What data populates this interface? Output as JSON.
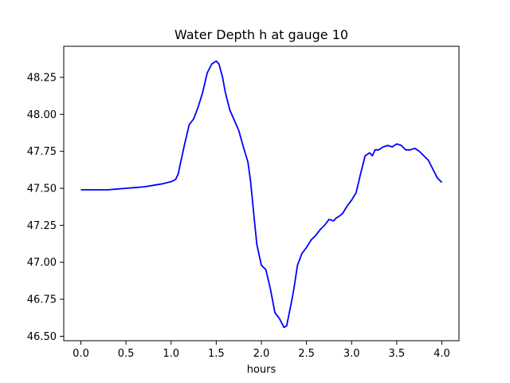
{
  "chart_data": {
    "type": "line",
    "title": "Water Depth h at gauge 10",
    "xlabel": "hours",
    "ylabel": "",
    "xlim": [
      -0.19,
      4.19
    ],
    "ylim": [
      46.47,
      48.46
    ],
    "xticks": [
      {
        "value": 0.0,
        "label": "0.0"
      },
      {
        "value": 0.5,
        "label": "0.5"
      },
      {
        "value": 1.0,
        "label": "1.0"
      },
      {
        "value": 1.5,
        "label": "1.5"
      },
      {
        "value": 2.0,
        "label": "2.0"
      },
      {
        "value": 2.5,
        "label": "2.5"
      },
      {
        "value": 3.0,
        "label": "3.0"
      },
      {
        "value": 3.5,
        "label": "3.5"
      },
      {
        "value": 4.0,
        "label": "4.0"
      }
    ],
    "yticks": [
      {
        "value": 46.5,
        "label": "46.50"
      },
      {
        "value": 46.75,
        "label": "46.75"
      },
      {
        "value": 47.0,
        "label": "47.00"
      },
      {
        "value": 47.25,
        "label": "47.25"
      },
      {
        "value": 47.5,
        "label": "47.50"
      },
      {
        "value": 47.75,
        "label": "47.75"
      },
      {
        "value": 48.0,
        "label": "48.00"
      },
      {
        "value": 48.25,
        "label": "48.25"
      }
    ],
    "grid": false,
    "series": [
      {
        "color": "#0000ff",
        "x": [
          0.0,
          0.1,
          0.2,
          0.3,
          0.4,
          0.5,
          0.6,
          0.7,
          0.75,
          0.8,
          0.9,
          1.0,
          1.05,
          1.08,
          1.1,
          1.15,
          1.2,
          1.25,
          1.3,
          1.35,
          1.4,
          1.45,
          1.5,
          1.53,
          1.57,
          1.6,
          1.65,
          1.7,
          1.75,
          1.8,
          1.85,
          1.88,
          1.92,
          1.95,
          2.0,
          2.05,
          2.1,
          2.15,
          2.2,
          2.25,
          2.28,
          2.3,
          2.33,
          2.36,
          2.4,
          2.45,
          2.5,
          2.55,
          2.6,
          2.65,
          2.7,
          2.75,
          2.8,
          2.83,
          2.86,
          2.9,
          2.95,
          3.0,
          3.05,
          3.1,
          3.15,
          3.2,
          3.23,
          3.26,
          3.3,
          3.35,
          3.4,
          3.45,
          3.5,
          3.55,
          3.6,
          3.65,
          3.7,
          3.75,
          3.8,
          3.85,
          3.9,
          3.95,
          4.0
        ],
        "y": [
          47.49,
          47.49,
          47.49,
          47.49,
          47.495,
          47.5,
          47.505,
          47.51,
          47.515,
          47.52,
          47.53,
          47.545,
          47.56,
          47.6,
          47.66,
          47.8,
          47.93,
          47.97,
          48.05,
          48.15,
          48.28,
          48.34,
          48.36,
          48.34,
          48.25,
          48.15,
          48.03,
          47.96,
          47.89,
          47.78,
          47.68,
          47.55,
          47.3,
          47.12,
          46.98,
          46.95,
          46.82,
          46.66,
          46.62,
          46.56,
          46.57,
          46.63,
          46.72,
          46.82,
          46.98,
          47.06,
          47.1,
          47.15,
          47.18,
          47.22,
          47.25,
          47.29,
          47.28,
          47.3,
          47.31,
          47.33,
          47.38,
          47.42,
          47.47,
          47.6,
          47.72,
          47.74,
          47.72,
          47.76,
          47.76,
          47.78,
          47.79,
          47.78,
          47.8,
          47.79,
          47.76,
          47.76,
          47.77,
          47.75,
          47.72,
          47.69,
          47.63,
          47.57,
          47.54
        ]
      }
    ]
  }
}
